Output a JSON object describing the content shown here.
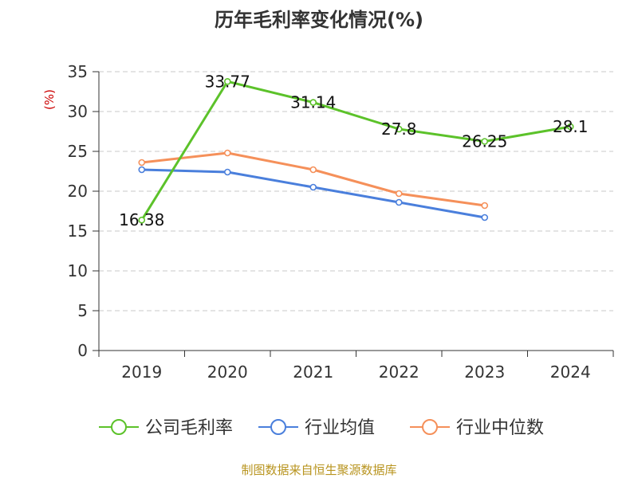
{
  "chart_data": {
    "type": "line",
    "title": "历年毛利率变化情况(%)",
    "ylabel": "(%)",
    "xlabel": "",
    "categories": [
      "2019",
      "2020",
      "2021",
      "2022",
      "2023",
      "2024"
    ],
    "ylim": [
      0,
      35
    ],
    "yticks": [
      0,
      5,
      10,
      15,
      20,
      25,
      30,
      35
    ],
    "grid": "horizontal dashed",
    "legend_position": "bottom",
    "series": [
      {
        "name": "公司毛利率",
        "color": "#5cc22a",
        "values": [
          16.38,
          33.77,
          31.14,
          27.8,
          26.25,
          28.1
        ],
        "labels": [
          "16.38",
          "33.77",
          "31.14",
          "27.8",
          "26.25",
          "28.1"
        ],
        "show_labels": true
      },
      {
        "name": "行业均值",
        "color": "#4a7fdc",
        "values": [
          22.7,
          22.4,
          20.5,
          18.6,
          16.7,
          null
        ],
        "show_labels": false
      },
      {
        "name": "行业中位数",
        "color": "#f5905a",
        "values": [
          23.6,
          24.8,
          22.7,
          19.7,
          18.2,
          null
        ],
        "show_labels": false
      }
    ]
  },
  "footer": {
    "source": "制图数据来自恒生聚源数据库"
  }
}
